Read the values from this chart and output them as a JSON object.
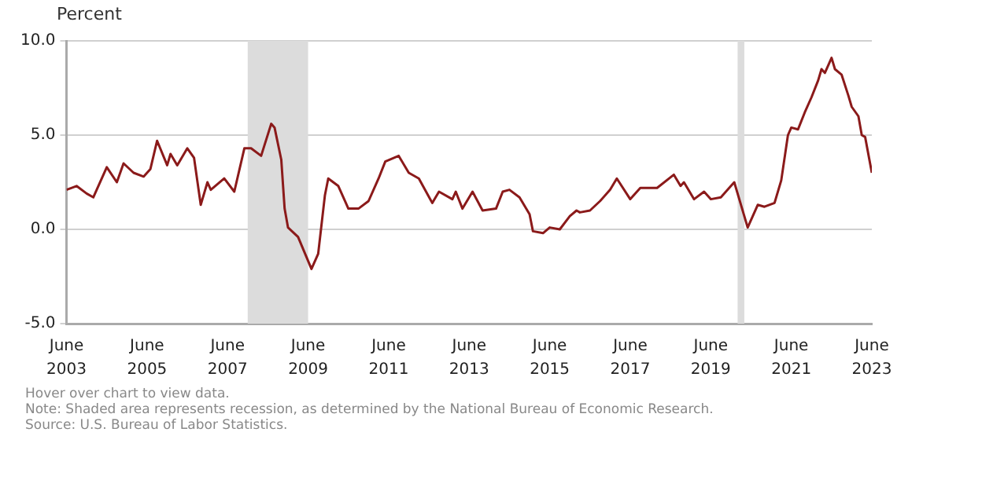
{
  "chart_data": {
    "type": "line",
    "ylabel": "Percent",
    "x": [
      "2003-06",
      "2003-09",
      "2003-12",
      "2004-02",
      "2004-06",
      "2004-09",
      "2004-11",
      "2005-02",
      "2005-05",
      "2005-07",
      "2005-09",
      "2005-12",
      "2006-01",
      "2006-03",
      "2006-06",
      "2006-08",
      "2006-10",
      "2006-12",
      "2007-01",
      "2007-05",
      "2007-08",
      "2007-11",
      "2008-01",
      "2008-04",
      "2008-07",
      "2008-08",
      "2008-10",
      "2008-11",
      "2008-12",
      "2009-03",
      "2009-07",
      "2009-09",
      "2009-11",
      "2009-12",
      "2010-03",
      "2010-06",
      "2010-09",
      "2010-12",
      "2011-03",
      "2011-05",
      "2011-09",
      "2011-12",
      "2012-03",
      "2012-07",
      "2012-09",
      "2013-01",
      "2013-02",
      "2013-04",
      "2013-07",
      "2013-10",
      "2014-02",
      "2014-04",
      "2014-06",
      "2014-09",
      "2014-12",
      "2015-01",
      "2015-04",
      "2015-06",
      "2015-09",
      "2015-12",
      "2016-02",
      "2016-03",
      "2016-06",
      "2016-09",
      "2016-12",
      "2017-02",
      "2017-06",
      "2017-09",
      "2017-11",
      "2018-02",
      "2018-07",
      "2018-09",
      "2018-10",
      "2019-01",
      "2019-04",
      "2019-06",
      "2019-09",
      "2019-12",
      "2020-01",
      "2020-05",
      "2020-08",
      "2020-10",
      "2021-01",
      "2021-03",
      "2021-05",
      "2021-06",
      "2021-08",
      "2021-10",
      "2021-12",
      "2022-02",
      "2022-03",
      "2022-04",
      "2022-06",
      "2022-07",
      "2022-09",
      "2022-11",
      "2022-12",
      "2023-02",
      "2023-03",
      "2023-04",
      "2023-06"
    ],
    "series": [
      {
        "color": "#8b1a1a",
        "values": [
          2.1,
          2.3,
          1.9,
          1.7,
          3.3,
          2.5,
          3.5,
          3.0,
          2.8,
          3.2,
          4.7,
          3.4,
          4.0,
          3.4,
          4.3,
          3.8,
          1.3,
          2.5,
          2.1,
          2.7,
          2.0,
          4.3,
          4.3,
          3.9,
          5.6,
          5.4,
          3.7,
          1.1,
          0.1,
          -0.4,
          -2.1,
          -1.3,
          1.8,
          2.7,
          2.3,
          1.1,
          1.1,
          1.5,
          2.7,
          3.6,
          3.9,
          3.0,
          2.7,
          1.4,
          2.0,
          1.6,
          2.0,
          1.1,
          2.0,
          1.0,
          1.1,
          2.0,
          2.1,
          1.7,
          0.8,
          -0.1,
          -0.2,
          0.1,
          0.0,
          0.7,
          1.0,
          0.9,
          1.0,
          1.5,
          2.1,
          2.7,
          1.6,
          2.2,
          2.2,
          2.2,
          2.9,
          2.3,
          2.5,
          1.6,
          2.0,
          1.6,
          1.7,
          2.3,
          2.5,
          0.1,
          1.3,
          1.2,
          1.4,
          2.6,
          5.0,
          5.4,
          5.3,
          6.2,
          7.0,
          7.9,
          8.5,
          8.3,
          9.1,
          8.5,
          8.2,
          7.1,
          6.5,
          6.0,
          5.0,
          4.9,
          3.0
        ]
      }
    ],
    "xlim": [
      "2003-06",
      "2023-06"
    ],
    "xticks": [
      {
        "value": "2003-06",
        "label": "June\n2003"
      },
      {
        "value": "2005-06",
        "label": "June\n2005"
      },
      {
        "value": "2007-06",
        "label": "June\n2007"
      },
      {
        "value": "2009-06",
        "label": "June\n2009"
      },
      {
        "value": "2011-06",
        "label": "June\n2011"
      },
      {
        "value": "2013-06",
        "label": "June\n2013"
      },
      {
        "value": "2015-06",
        "label": "June\n2015"
      },
      {
        "value": "2017-06",
        "label": "June\n2017"
      },
      {
        "value": "2019-06",
        "label": "June\n2019"
      },
      {
        "value": "2021-06",
        "label": "June\n2021"
      },
      {
        "value": "2023-06",
        "label": "June\n2023"
      }
    ],
    "ylim": [
      -5,
      10
    ],
    "yticks": [
      {
        "value": -5,
        "label": "-5.0"
      },
      {
        "value": 0,
        "label": "0.0"
      },
      {
        "value": 5,
        "label": "5.0"
      },
      {
        "value": 10,
        "label": "10.0"
      }
    ],
    "grid": "y",
    "legend": false,
    "marker": "none",
    "line_style": "solid",
    "bands": [
      {
        "axis": "x",
        "from": "2007-12",
        "to": "2009-06",
        "color": "#dcdcdc"
      },
      {
        "axis": "x",
        "from": "2020-02",
        "to": "2020-04",
        "color": "#dcdcdc"
      }
    ],
    "annotations": [
      "Hover over chart to view data.",
      "Note: Shaded area represents recession, as determined by the National Bureau of Economic Research.",
      "Source: U.S. Bureau of Labor Statistics."
    ]
  }
}
